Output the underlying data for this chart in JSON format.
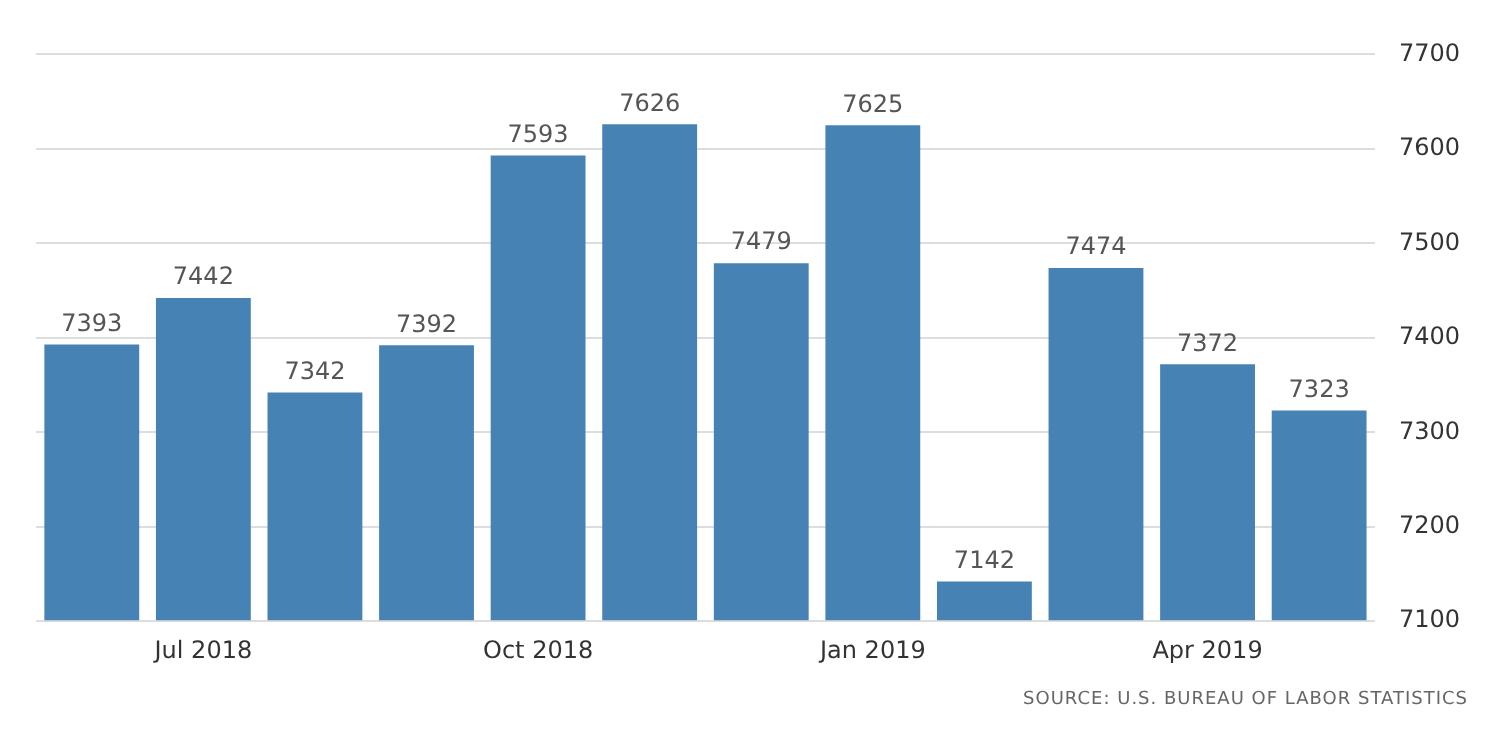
{
  "chart_data": {
    "type": "bar",
    "categories": [
      null,
      "Jul 2018",
      null,
      null,
      "Oct 2018",
      null,
      null,
      "Jan 2019",
      null,
      null,
      "Apr 2019",
      null
    ],
    "values": [
      7393,
      7442,
      7342,
      7392,
      7593,
      7626,
      7479,
      7625,
      7142,
      7474,
      7372,
      7323
    ],
    "color": "#4682b4",
    "ylim": [
      7100,
      7700
    ],
    "yticks": [
      7100,
      7200,
      7300,
      7400,
      7500,
      7600,
      7700
    ],
    "grid": "y",
    "data_labels": true,
    "legend": false,
    "annotations": [
      "SOURCE: U.S. BUREAU OF LABOR STATISTICS"
    ]
  }
}
